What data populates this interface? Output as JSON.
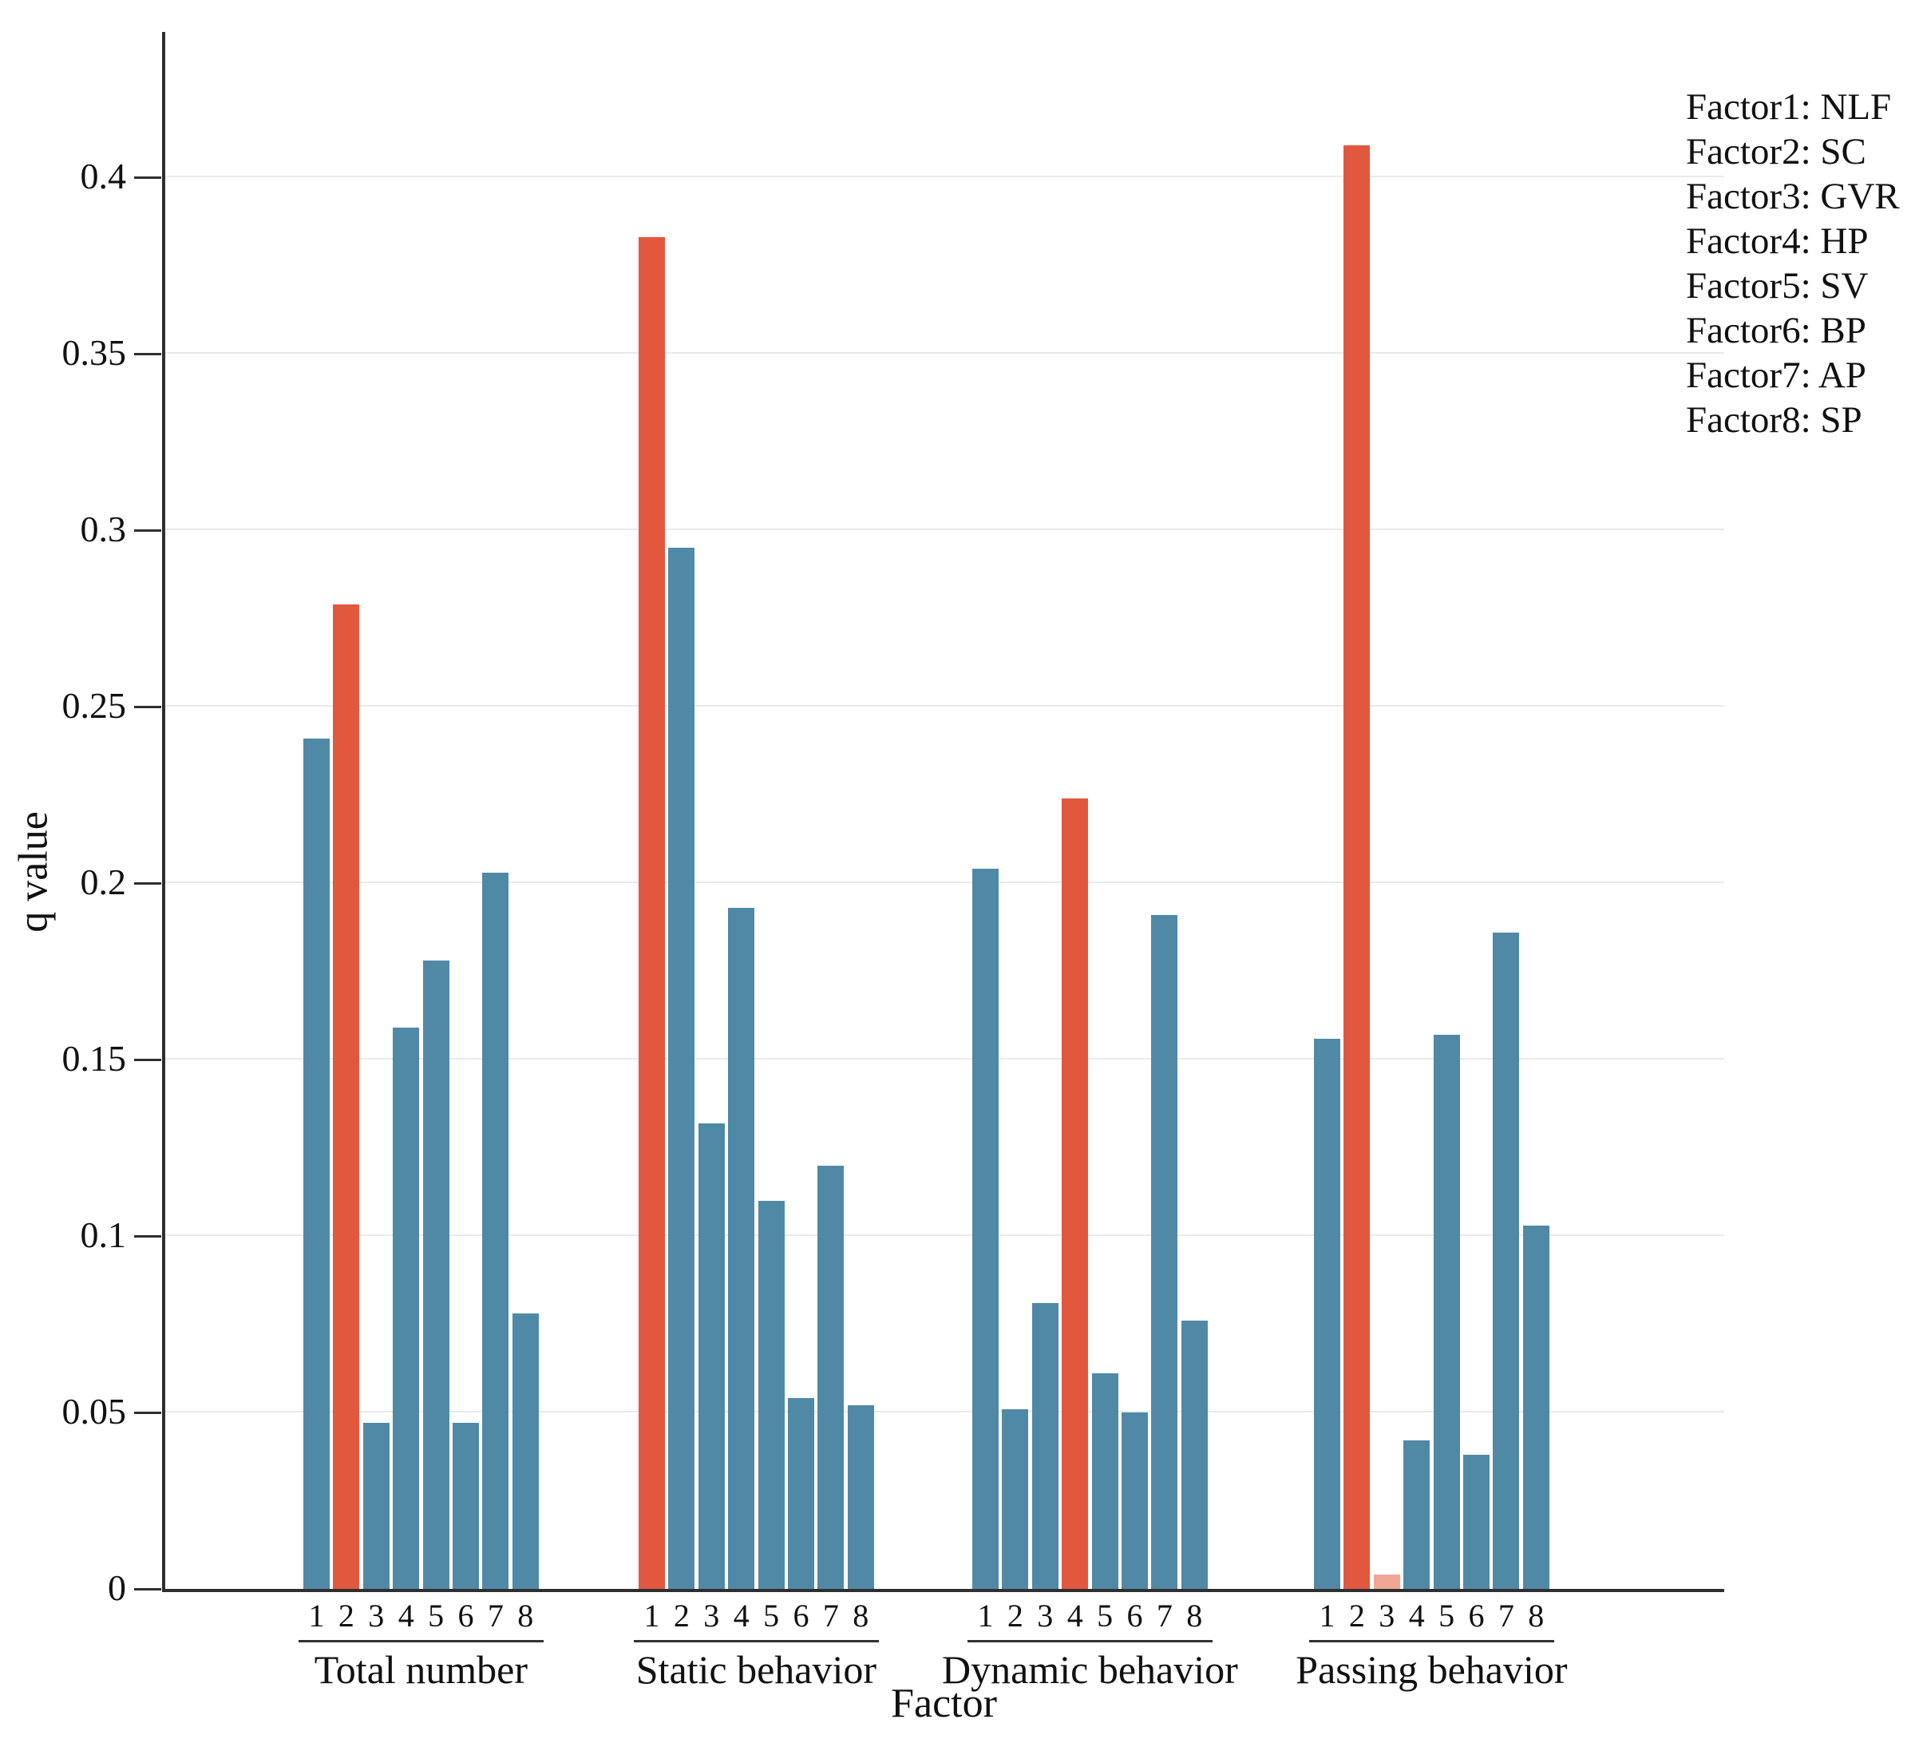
{
  "chart_data": {
    "type": "bar",
    "title": "",
    "ylabel": "q value",
    "xlabel": "Factor",
    "ylim": [
      0,
      0.4412
    ],
    "yticks": [
      0,
      0.05,
      0.1,
      0.15,
      0.2,
      0.25,
      0.3,
      0.35,
      0.4
    ],
    "ytick_labels": [
      "0",
      "0.05",
      "0.1",
      "0.15",
      "0.2",
      "0.25",
      "0.3",
      "0.35",
      "0.4"
    ],
    "grid": "horizontal",
    "legend_position": "top-right",
    "bar_labels": [
      "1",
      "2",
      "3",
      "4",
      "5",
      "6",
      "7",
      "8"
    ],
    "groups": [
      {
        "label": "Total number",
        "values": [
          0.241,
          0.279,
          0.047,
          0.159,
          0.178,
          0.047,
          0.203,
          0.078
        ],
        "color_keys": [
          "blue",
          "red",
          "blue",
          "blue",
          "blue",
          "blue",
          "blue",
          "blue"
        ]
      },
      {
        "label": "Static behavior",
        "values": [
          0.383,
          0.295,
          0.132,
          0.193,
          0.11,
          0.054,
          0.12,
          0.052
        ],
        "color_keys": [
          "red",
          "blue",
          "blue",
          "blue",
          "blue",
          "blue",
          "blue",
          "blue"
        ]
      },
      {
        "label": "Dynamic behavior",
        "values": [
          0.204,
          0.051,
          0.081,
          0.224,
          0.061,
          0.05,
          0.191,
          0.076
        ],
        "color_keys": [
          "blue",
          "blue",
          "blue",
          "red",
          "blue",
          "blue",
          "blue",
          "blue"
        ]
      },
      {
        "label": "Passing behavior",
        "values": [
          0.156,
          0.409,
          0.004,
          0.042,
          0.157,
          0.038,
          0.186,
          0.103
        ],
        "color_keys": [
          "blue",
          "red",
          "red_light",
          "blue",
          "blue",
          "blue",
          "blue",
          "blue"
        ]
      }
    ]
  },
  "legend": {
    "items": [
      "Factor1: NLF",
      "Factor2: SC",
      "Factor3: GVR",
      "Factor4: HP",
      "Factor5: SV",
      "Factor6: BP",
      "Factor7: AP",
      "Factor8: SP"
    ]
  },
  "colors": {
    "blue": "#5089A6",
    "red": "#E2583F",
    "red_light": "#F0A795",
    "grid": "#EAEAEA",
    "axis": "#2F2F2F"
  }
}
